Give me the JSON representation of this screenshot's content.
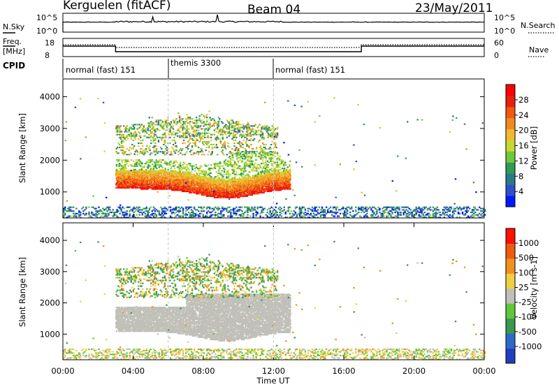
{
  "header": {
    "station": "Kerguelen (fitACF)",
    "beam": "Beam 04",
    "date": "23/May/2011"
  },
  "sky_panel": {
    "left_label": "N.Sky",
    "left_ticks": [
      "10^5",
      "10^0"
    ],
    "right_label": "N.Search",
    "right_ticks": [
      "10^5",
      "10^0"
    ]
  },
  "freq_panel": {
    "left_label_1": "Freq.",
    "left_label_2": "[MHz]",
    "left_ticks": [
      "18",
      "8"
    ],
    "right_label": "Nave",
    "right_ticks": [
      "60",
      "0"
    ]
  },
  "cpid": {
    "label": "CPID",
    "segments": [
      {
        "name": "normal (fast) 151",
        "start_hour": 0,
        "end_hour": 6
      },
      {
        "name": "themis 3300",
        "start_hour": 6,
        "end_hour": 12
      },
      {
        "name": "normal (fast) 151",
        "start_hour": 12,
        "end_hour": 24
      }
    ]
  },
  "chart_data": {
    "type": "heatmap",
    "xlabel": "Time UT",
    "x_ticks": [
      "00:00",
      "04:00",
      "08:00",
      "12:00",
      "16:00",
      "20:00",
      "00:00"
    ],
    "xlim_hours": [
      0,
      24
    ],
    "panels": [
      {
        "quantity": "power",
        "ylabel": "Slant Range [km]",
        "ylim": [
          180,
          4560
        ],
        "y_ticks": [
          1000,
          2000,
          3000,
          4000
        ],
        "colorbar": {
          "label": "Power [dB]",
          "ticks": [
            4,
            8,
            12,
            16,
            20,
            24,
            28
          ],
          "range": [
            0,
            32
          ],
          "colors": [
            "#0018ff",
            "#3050c8",
            "#2a7a8a",
            "#2e9a55",
            "#6ec83a",
            "#c9d830",
            "#f2b830",
            "#f08a20",
            "#f05a10",
            "#e82010",
            "#ff0000"
          ]
        },
        "features": [
          {
            "name": "main echo band",
            "t_start": 3.0,
            "t_end": 12.8,
            "range_km": [
              800,
              1600
            ],
            "typical": 26
          },
          {
            "name": "upper echoes",
            "t_start": 3.0,
            "t_end": 12.2,
            "range_km": [
              2200,
              3600
            ],
            "typical": 13
          },
          {
            "name": "ground scatter near ionosphere",
            "t_start": 0,
            "t_end": 24,
            "range_km": [
              200,
              550
            ],
            "typical": 7
          }
        ]
      },
      {
        "quantity": "velocity",
        "ylabel": "Slant Range [km]",
        "ylim": [
          180,
          4560
        ],
        "y_ticks": [
          1000,
          2000,
          3000,
          4000
        ],
        "colorbar": {
          "label": "Velocity [m s-1]",
          "ticks": [
            "1000",
            "500",
            "100",
            "25",
            "-25",
            "-100",
            "-500",
            "-1000"
          ],
          "colors": [
            "#1f3fbf",
            "#2f68c8",
            "#3c9650",
            "#60c838",
            "#c0c0b8",
            "#f0d040",
            "#f09020",
            "#f05a10",
            "#ff1000"
          ]
        },
        "features": [
          {
            "name": "ground scatter (grey)",
            "t_start": 3.0,
            "t_end": 13.0,
            "range_km": [
              800,
              2300
            ],
            "typical_velocity": 0
          },
          {
            "name": "upper echoes",
            "t_start": 3.0,
            "t_end": 12.2,
            "range_km": [
              2200,
              3600
            ],
            "typical_velocity": 150
          }
        ]
      }
    ]
  }
}
